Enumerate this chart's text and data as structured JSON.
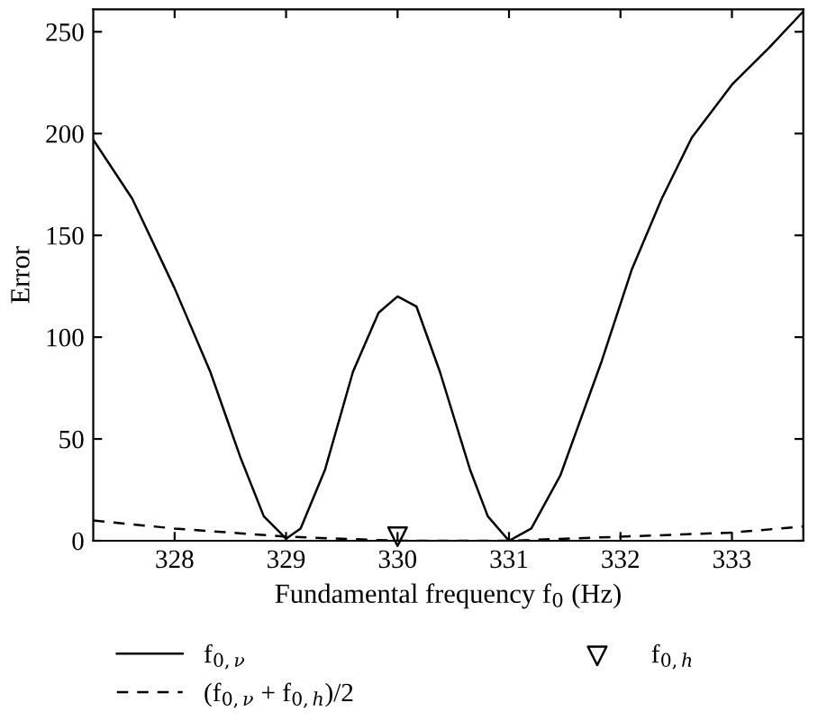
{
  "chart_data": {
    "type": "line",
    "xlabel": "Fundamental frequency f$_{0}$ (Hz)",
    "ylabel": "Error",
    "xlim": [
      327.27,
      333.64
    ],
    "ylim": [
      0,
      261
    ],
    "xticks": [
      328,
      329,
      330,
      331,
      332,
      333
    ],
    "yticks": [
      0,
      50,
      100,
      150,
      200,
      250
    ],
    "grid": false,
    "legend": "bottom",
    "series": [
      {
        "name": "f$_{0,ν}$",
        "color": "#000000",
        "line_style": "solid",
        "x": [
          327.27,
          327.62,
          328,
          328.32,
          328.59,
          328.8,
          329,
          329.13,
          329.35,
          329.6,
          329.83,
          330,
          330.17,
          330.38,
          330.65,
          330.81,
          331,
          331.2,
          331.46,
          331.83,
          332.1,
          332.37,
          332.64,
          333,
          333.33,
          333.64
        ],
        "values": [
          197,
          168,
          124,
          83,
          41,
          12,
          1,
          6,
          35,
          83,
          112,
          120,
          115,
          83,
          35,
          12,
          0,
          6,
          32,
          88,
          133,
          168,
          198,
          224,
          242,
          260
        ]
      },
      {
        "name": "(f$_{0,ν}$ + f$_{0,h}$)/2",
        "color": "#000000",
        "line_style": "dashed",
        "x": [
          327.27,
          328,
          329,
          330,
          331,
          332,
          333,
          333.64
        ],
        "values": [
          10,
          6,
          2,
          0,
          0,
          2,
          4,
          7
        ]
      },
      {
        "name": "f$_{0,h}$",
        "type": "scatter",
        "color": "#000000",
        "marker": "triangle",
        "x": [
          330
        ],
        "values": [
          2
        ]
      }
    ]
  }
}
